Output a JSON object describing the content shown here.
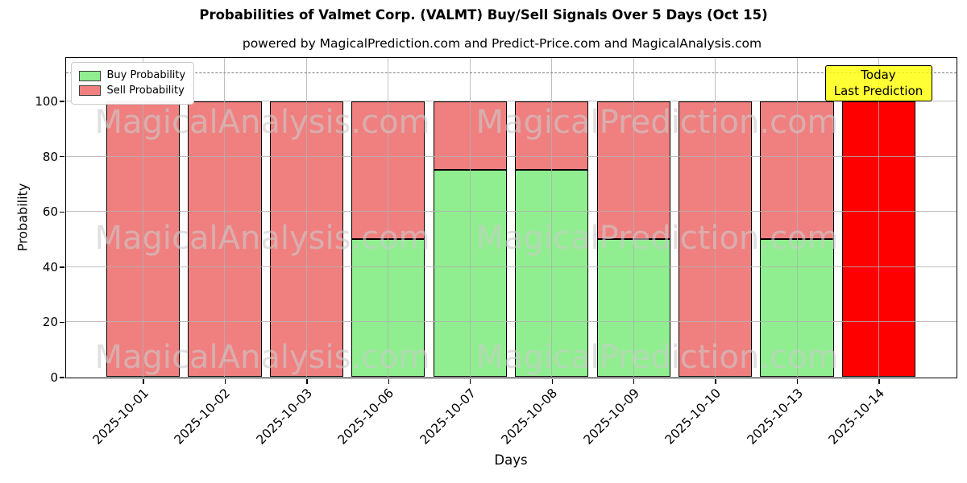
{
  "figure": {
    "title": "Probabilities of Valmet Corp. (VALMT) Buy/Sell Signals Over 5 Days (Oct 15)",
    "subtitle": "powered by MagicalPrediction.com and Predict-Price.com and MagicalAnalysis.com"
  },
  "legend": {
    "items": [
      {
        "label": "Buy Probability",
        "color": "#90EE90"
      },
      {
        "label": "Sell Probability",
        "color": "#F08080"
      }
    ]
  },
  "annotation": {
    "line1": "Today",
    "line2": "Last Prediction",
    "bg_color": "rgba(255,255,0,0.8)"
  },
  "watermarks": {
    "left_text": "MagicalAnalysis.com",
    "right_text": "MagicalPrediction.com"
  },
  "chart_data": {
    "type": "bar",
    "stacked": true,
    "title": "Probabilities of Valmet Corp. (VALMT) Buy/Sell Signals Over 5 Days (Oct 15)",
    "xlabel": "Days",
    "ylabel": "Probability",
    "categories": [
      "2025-10-01",
      "2025-10-02",
      "2025-10-03",
      "2025-10-06",
      "2025-10-07",
      "2025-10-08",
      "2025-10-09",
      "2025-10-10",
      "2025-10-13",
      "2025-10-14"
    ],
    "series": [
      {
        "name": "Buy Probability",
        "color": "#90EE90",
        "values": [
          0,
          0,
          0,
          50,
          75,
          75,
          50,
          0,
          50,
          0
        ]
      },
      {
        "name": "Sell Probability",
        "color": "#F08080",
        "values": [
          100,
          100,
          100,
          50,
          25,
          25,
          50,
          100,
          50,
          100
        ]
      }
    ],
    "today_bar": {
      "index": 9,
      "category": "2025-10-14",
      "value": 100,
      "color": "#FF0000",
      "label": "Today / Last Prediction"
    },
    "dashed_line_y": 110,
    "ylim": [
      0,
      115.8
    ],
    "yticks": [
      0,
      20,
      40,
      60,
      80,
      100
    ],
    "grid": true,
    "grid_over_bars": true,
    "legend_position": "upper-left",
    "bar_edge_color": "#000000"
  }
}
